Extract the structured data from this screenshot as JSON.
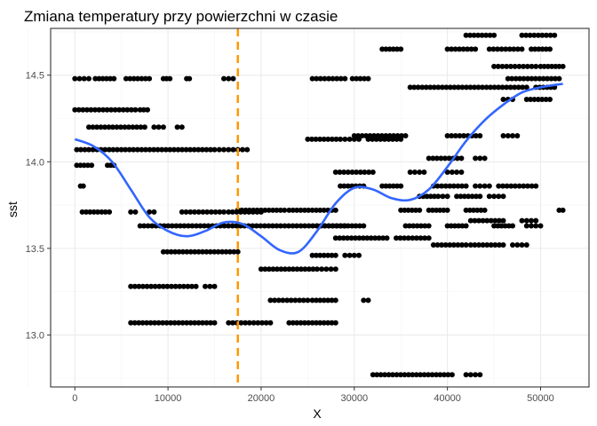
{
  "chart_data": {
    "type": "scatter",
    "title": "Zmiana temperatury przy powierzchni w czasie",
    "xlabel": "X",
    "ylabel": "sst",
    "xlim": [
      -2600,
      55200
    ],
    "ylim": [
      12.7,
      14.77
    ],
    "xticks": [
      0,
      10000,
      20000,
      30000,
      40000,
      50000
    ],
    "xtick_labels": [
      "0",
      "10000",
      "20000",
      "30000",
      "40000",
      "50000"
    ],
    "yticks": [
      13.0,
      13.5,
      14.0,
      14.5
    ],
    "ytick_labels": [
      "13.0",
      "13.5",
      "14.0",
      "14.5"
    ],
    "grid": true,
    "panel_border": true,
    "colors": {
      "points": "#000000",
      "smooth": "#3366ff",
      "vline": "#ff9900",
      "grid_major": "#ebebeb",
      "grid_minor": "#f5f5f5",
      "border": "#333333"
    },
    "vline": {
      "x": 17500,
      "style": "dashed"
    },
    "point_bands": [
      {
        "y": 14.48,
        "x_ranges": [
          [
            0,
            1500
          ],
          [
            2200,
            4200
          ],
          [
            5500,
            8000
          ],
          [
            9500,
            10200
          ],
          [
            12000,
            12300
          ],
          [
            16000,
            17000
          ],
          [
            25500,
            29000
          ],
          [
            29800,
            31500
          ],
          [
            46500,
            52000
          ]
        ]
      },
      {
        "y": 14.3,
        "x_ranges": [
          [
            0,
            6500
          ],
          [
            7000,
            7800
          ]
        ]
      },
      {
        "y": 14.2,
        "x_ranges": [
          [
            1500,
            7500
          ],
          [
            8500,
            9500
          ],
          [
            11000,
            11500
          ]
        ]
      },
      {
        "y": 14.07,
        "x_ranges": [
          [
            200,
            15000
          ],
          [
            15500,
            16500
          ],
          [
            17000,
            18500
          ]
        ]
      },
      {
        "y": 13.98,
        "x_ranges": [
          [
            200,
            1800
          ],
          [
            3500,
            4200
          ]
        ]
      },
      {
        "y": 13.86,
        "x_ranges": [
          [
            600,
            900
          ]
        ]
      },
      {
        "y": 13.71,
        "x_ranges": [
          [
            800,
            3700
          ],
          [
            6000,
            6500
          ],
          [
            8000,
            8500
          ],
          [
            11500,
            16000
          ],
          [
            16500,
            20000
          ]
        ]
      },
      {
        "y": 13.63,
        "x_ranges": [
          [
            7000,
            29000
          ]
        ]
      },
      {
        "y": 13.48,
        "x_ranges": [
          [
            9500,
            17500
          ]
        ]
      },
      {
        "y": 13.28,
        "x_ranges": [
          [
            6000,
            13000
          ],
          [
            14000,
            15000
          ]
        ]
      },
      {
        "y": 13.07,
        "x_ranges": [
          [
            6000,
            15000
          ],
          [
            16500,
            21000
          ],
          [
            23000,
            28000
          ]
        ]
      },
      {
        "y": 14.73,
        "x_ranges": [
          [
            42000,
            45000
          ],
          [
            48000,
            51500
          ]
        ]
      },
      {
        "y": 14.65,
        "x_ranges": [
          [
            33000,
            35000
          ],
          [
            40000,
            43000
          ],
          [
            44500,
            48000
          ],
          [
            49000,
            51000
          ]
        ]
      },
      {
        "y": 14.55,
        "x_ranges": [
          [
            45000,
            49500
          ],
          [
            50000,
            52400
          ]
        ]
      },
      {
        "y": 14.43,
        "x_ranges": [
          [
            36000,
            48500
          ],
          [
            49500,
            51500
          ]
        ]
      },
      {
        "y": 14.36,
        "x_ranges": [
          [
            46000,
            47000
          ],
          [
            48500,
            51000
          ]
        ]
      },
      {
        "y": 14.15,
        "x_ranges": [
          [
            30000,
            35500
          ],
          [
            40000,
            43500
          ],
          [
            46000,
            47500
          ]
        ]
      },
      {
        "y": 14.13,
        "x_ranges": [
          [
            25000,
            28500
          ],
          [
            29000,
            30500
          ],
          [
            31500,
            35000
          ]
        ]
      },
      {
        "y": 14.02,
        "x_ranges": [
          [
            38000,
            41500
          ],
          [
            43000,
            44000
          ]
        ]
      },
      {
        "y": 13.94,
        "x_ranges": [
          [
            28000,
            32000
          ],
          [
            36000,
            37500
          ],
          [
            40000,
            41500
          ]
        ]
      },
      {
        "y": 13.86,
        "x_ranges": [
          [
            28500,
            31000
          ],
          [
            33000,
            35000
          ],
          [
            38500,
            42000
          ],
          [
            43000,
            44500
          ],
          [
            45500,
            49500
          ]
        ]
      },
      {
        "y": 13.8,
        "x_ranges": [
          [
            37000,
            39000
          ],
          [
            39500,
            40000
          ],
          [
            41000,
            43500
          ],
          [
            44500,
            46000
          ]
        ]
      },
      {
        "y": 13.72,
        "x_ranges": [
          [
            17500,
            22500
          ],
          [
            23000,
            28000
          ],
          [
            35000,
            37000
          ],
          [
            38000,
            40000
          ],
          [
            42000,
            44000
          ],
          [
            52000,
            52400
          ]
        ]
      },
      {
        "y": 13.66,
        "x_ranges": [
          [
            42500,
            46000
          ],
          [
            48000,
            49500
          ]
        ]
      },
      {
        "y": 13.63,
        "x_ranges": [
          [
            26000,
            31000
          ],
          [
            35500,
            38000
          ],
          [
            40000,
            42000
          ],
          [
            45000,
            47000
          ],
          [
            48500,
            50000
          ]
        ]
      },
      {
        "y": 13.56,
        "x_ranges": [
          [
            28000,
            33500
          ],
          [
            34500,
            38000
          ]
        ]
      },
      {
        "y": 13.52,
        "x_ranges": [
          [
            38500,
            42000
          ],
          [
            42500,
            46000
          ],
          [
            47000,
            48500
          ]
        ]
      },
      {
        "y": 13.46,
        "x_ranges": [
          [
            25500,
            28000
          ],
          [
            29000,
            30500
          ]
        ]
      },
      {
        "y": 13.38,
        "x_ranges": [
          [
            20000,
            26000
          ],
          [
            26500,
            28000
          ]
        ]
      },
      {
        "y": 13.2,
        "x_ranges": [
          [
            21000,
            25000
          ],
          [
            25500,
            28000
          ],
          [
            31000,
            31500
          ]
        ]
      },
      {
        "y": 12.77,
        "x_ranges": [
          [
            32000,
            40500
          ],
          [
            42000,
            43500
          ]
        ]
      }
    ],
    "smooth_curve": {
      "x": [
        0,
        2000,
        4000,
        6000,
        8000,
        10000,
        12000,
        14000,
        16000,
        18000,
        20000,
        22000,
        24000,
        26000,
        28000,
        30000,
        32000,
        34000,
        36000,
        38000,
        40000,
        42000,
        44000,
        46000,
        48000,
        50000,
        52400
      ],
      "y": [
        14.13,
        14.09,
        14.0,
        13.84,
        13.68,
        13.6,
        13.57,
        13.6,
        13.65,
        13.64,
        13.57,
        13.49,
        13.48,
        13.6,
        13.76,
        13.85,
        13.84,
        13.79,
        13.78,
        13.84,
        13.97,
        14.12,
        14.24,
        14.33,
        14.4,
        14.43,
        14.45
      ]
    }
  }
}
